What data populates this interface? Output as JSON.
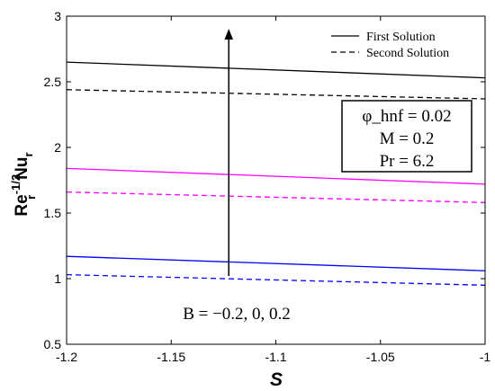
{
  "chart_data": {
    "type": "line",
    "xlabel": "S",
    "ylabel": {
      "base": "Re",
      "sup": "-1/2",
      "sub": "r",
      "rest": "Nu",
      "sub2": "r"
    },
    "xlim": [
      -1.2,
      -1
    ],
    "ylim": [
      0.5,
      3
    ],
    "x_ticks": [
      "-1.2",
      "-1.15",
      "-1.1",
      "-1.05",
      "-1"
    ],
    "y_ticks": [
      "0.5",
      "1",
      "1.5",
      "2",
      "2.5",
      "3"
    ],
    "x_tick_values": [
      -1.2,
      -1.15,
      -1.1,
      -1.05,
      -1
    ],
    "y_tick_values": [
      0.5,
      1,
      1.5,
      2,
      2.5,
      3
    ],
    "legend": {
      "placement": "top-right",
      "entries": [
        {
          "label": "First Solution",
          "style": "solid"
        },
        {
          "label": "Second Solution",
          "style": "dashed"
        }
      ]
    },
    "series": [
      {
        "x": [
          -1.2,
          -1
        ],
        "y": [
          2.65,
          2.53
        ],
        "color": "#000000",
        "style": "solid"
      },
      {
        "x": [
          -1.2,
          -1
        ],
        "y": [
          2.44,
          2.37
        ],
        "color": "#000000",
        "style": "dashed"
      },
      {
        "x": [
          -1.2,
          -1
        ],
        "y": [
          1.84,
          1.72
        ],
        "color": "#ff00ff",
        "style": "solid"
      },
      {
        "x": [
          -1.2,
          -1
        ],
        "y": [
          1.66,
          1.58
        ],
        "color": "#ff00ff",
        "style": "dashed"
      },
      {
        "x": [
          -1.2,
          -1
        ],
        "y": [
          1.17,
          1.06
        ],
        "color": "#0000ff",
        "style": "solid"
      },
      {
        "x": [
          -1.2,
          -1
        ],
        "y": [
          1.03,
          0.95
        ],
        "color": "#0000ff",
        "style": "dashed"
      }
    ],
    "annotations": {
      "params_box": [
        "φ_hnf = 0.02",
        "M = 0.2",
        "Pr = 6.2"
      ],
      "arrow_label": "B = −0.2, 0, 0.2",
      "arrow": {
        "x": -1.1225,
        "y_from": 1.02,
        "y_to": 2.89
      }
    },
    "grid": false
  }
}
